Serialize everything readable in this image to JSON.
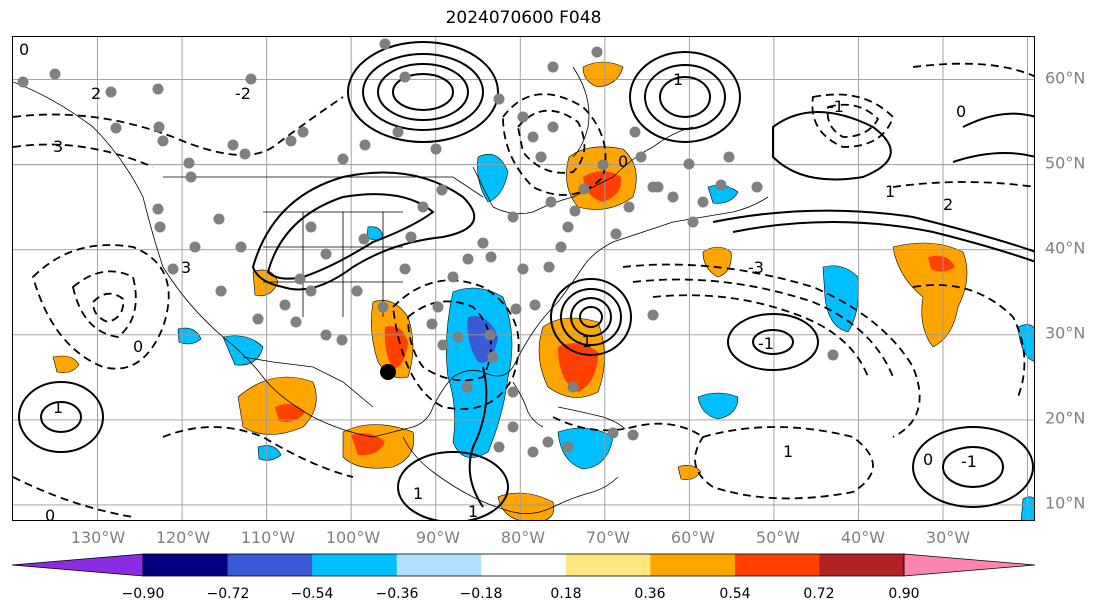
{
  "title": "2024070600 F048",
  "lon_labels": [
    "130°W",
    "120°W",
    "110°W",
    "100°W",
    "90°W",
    "80°W",
    "70°W",
    "60°W",
    "50°W",
    "40°W",
    "30°W"
  ],
  "lat_labels": [
    "60°N",
    "50°N",
    "40°N",
    "30°N",
    "20°N",
    "10°N"
  ],
  "extent": {
    "lon_min": -140,
    "lon_max": -19,
    "lat_min": 8,
    "lat_max": 65
  },
  "colorbar": {
    "ticks": [
      "−0.90",
      "−0.72",
      "−0.54",
      "−0.36",
      "−0.18",
      "0.18",
      "0.36",
      "0.54",
      "0.72",
      "0.90"
    ],
    "colors": [
      "#8b2be2",
      "#000080",
      "#3a5bd6",
      "#00bfff",
      "#b0e0ff",
      "#ffffff",
      "#ffe680",
      "#ffa500",
      "#ff4000",
      "#b22222",
      "#ff85b0"
    ]
  },
  "contour_labels": [
    "0",
    "2",
    "-2",
    "3",
    "1",
    "-1",
    "-3",
    "0",
    "1",
    "2",
    "-1",
    "1",
    "0",
    "3",
    "0",
    "1",
    "-1",
    "1",
    "-1",
    "0",
    "1",
    "0"
  ],
  "colors": {
    "positive": "#ffa500",
    "positive_strong": "#ff4000",
    "negative": "#00bfff",
    "negative_strong": "#3a5bd6",
    "marker": "#808080"
  }
}
